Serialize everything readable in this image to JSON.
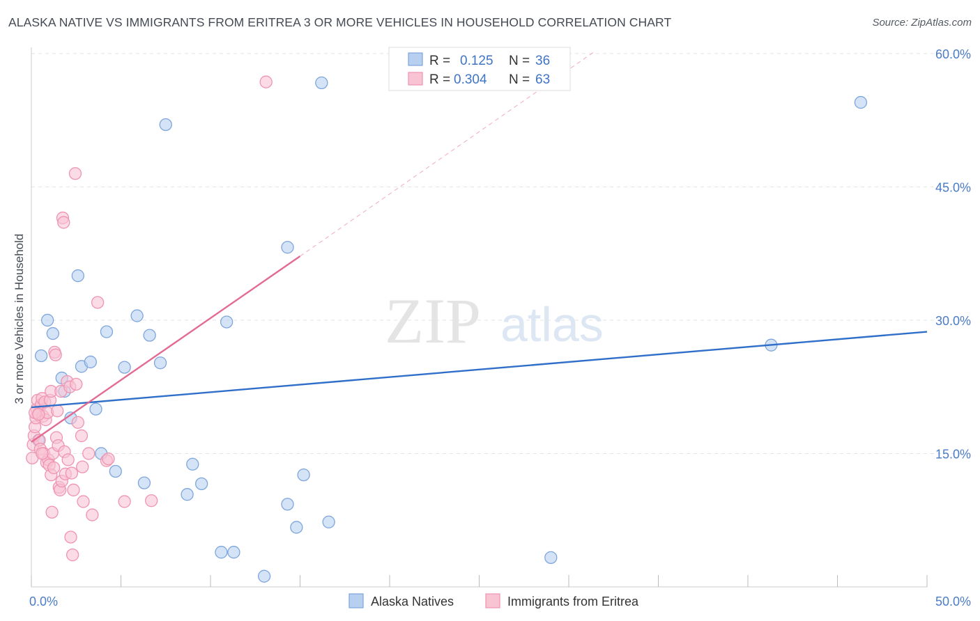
{
  "title": "ALASKA NATIVE VS IMMIGRANTS FROM ERITREA 3 OR MORE VEHICLES IN HOUSEHOLD CORRELATION CHART",
  "source": "Source: ZipAtlas.com",
  "watermark": {
    "zip": "ZIP",
    "atlas": "atlas"
  },
  "colors": {
    "blue_fill": "#b8d0f0",
    "blue_stroke": "#7ea6dc",
    "blue_line": "#2f6fc9",
    "pink_fill": "#f8c3d3",
    "pink_stroke": "#ef94b1",
    "pink_line": "#e26a93",
    "tick_text": "#4a7cc7",
    "grid": "#e3e3e3"
  },
  "legend": {
    "rows": [
      {
        "r_label": "R =",
        "r_value": "0.125",
        "n_label": "N =",
        "n_value": "36"
      },
      {
        "r_label": "R =",
        "r_value": "0.304",
        "n_label": "N =",
        "n_value": "63"
      }
    ]
  },
  "chart_data": {
    "type": "scatter",
    "title": "ALASKA NATIVE VS IMMIGRANTS FROM ERITREA 3 OR MORE VEHICLES IN HOUSEHOLD CORRELATION CHART",
    "xlabel": "",
    "ylabel": "3 or more Vehicles in Household",
    "xlim": [
      0,
      50
    ],
    "ylim": [
      0,
      60
    ],
    "x_tick_labels": [
      "0.0%",
      "50.0%"
    ],
    "y_ticks": [
      15,
      30,
      45,
      60
    ],
    "y_tick_labels": [
      "15.0%",
      "30.0%",
      "45.0%",
      "60.0%"
    ],
    "grid": true,
    "legend_position": "bottom-center",
    "series": [
      {
        "name": "Alaska Natives",
        "color": "#b8d0f0",
        "points": [
          [
            0.4,
            16.5
          ],
          [
            0.55,
            26
          ],
          [
            0.9,
            30
          ],
          [
            1.2,
            28.5
          ],
          [
            1.7,
            23.5
          ],
          [
            1.85,
            22
          ],
          [
            2.2,
            19
          ],
          [
            2.6,
            35
          ],
          [
            2.8,
            24.8
          ],
          [
            3.3,
            25.3
          ],
          [
            3.9,
            15
          ],
          [
            4.2,
            28.7
          ],
          [
            4.7,
            13
          ],
          [
            5.2,
            24.7
          ],
          [
            5.9,
            30.5
          ],
          [
            6.3,
            11.7
          ],
          [
            6.6,
            28.3
          ],
          [
            7.2,
            25.2
          ],
          [
            7.5,
            52
          ],
          [
            8.7,
            10.4
          ],
          [
            9.0,
            13.8
          ],
          [
            9.5,
            11.6
          ],
          [
            10.6,
            3.9
          ],
          [
            10.9,
            29.8
          ],
          [
            11.3,
            3.9
          ],
          [
            13.0,
            1.2
          ],
          [
            14.3,
            38.2
          ],
          [
            14.3,
            9.3
          ],
          [
            14.8,
            6.7
          ],
          [
            15.2,
            12.6
          ],
          [
            16.2,
            56.7
          ],
          [
            16.6,
            7.3
          ],
          [
            29.0,
            3.3
          ],
          [
            41.3,
            27.2
          ],
          [
            46.3,
            54.5
          ],
          [
            3.6,
            20
          ]
        ]
      },
      {
        "name": "Immigrants from Eritrea",
        "color": "#f8c3d3",
        "points": [
          [
            0.05,
            14.5
          ],
          [
            0.1,
            16
          ],
          [
            0.15,
            17
          ],
          [
            0.2,
            18
          ],
          [
            0.25,
            19
          ],
          [
            0.3,
            20
          ],
          [
            0.35,
            21
          ],
          [
            0.4,
            19.5
          ],
          [
            0.45,
            16.5
          ],
          [
            0.5,
            15.5
          ],
          [
            0.55,
            20.5
          ],
          [
            0.6,
            21.2
          ],
          [
            0.65,
            19.2
          ],
          [
            0.7,
            15
          ],
          [
            0.75,
            20.8
          ],
          [
            0.8,
            18.8
          ],
          [
            0.85,
            14
          ],
          [
            0.9,
            19.6
          ],
          [
            0.95,
            14.3
          ],
          [
            1.0,
            13.7
          ],
          [
            1.05,
            21
          ],
          [
            1.1,
            12.6
          ],
          [
            1.1,
            22
          ],
          [
            1.15,
            8.4
          ],
          [
            1.2,
            15
          ],
          [
            1.25,
            13.4
          ],
          [
            1.3,
            26.4
          ],
          [
            1.35,
            26.1
          ],
          [
            1.4,
            16.8
          ],
          [
            1.45,
            19.8
          ],
          [
            1.5,
            15.9
          ],
          [
            1.55,
            11.2
          ],
          [
            1.6,
            10.9
          ],
          [
            1.65,
            22
          ],
          [
            1.7,
            11.9
          ],
          [
            1.75,
            41.5
          ],
          [
            1.8,
            41
          ],
          [
            1.85,
            15.2
          ],
          [
            1.9,
            12.7
          ],
          [
            2.0,
            23.1
          ],
          [
            2.05,
            14.3
          ],
          [
            2.15,
            22.5
          ],
          [
            2.2,
            5.6
          ],
          [
            2.25,
            12.8
          ],
          [
            2.3,
            3.6
          ],
          [
            2.35,
            10.9
          ],
          [
            2.45,
            46.5
          ],
          [
            2.5,
            22.8
          ],
          [
            2.6,
            18.5
          ],
          [
            2.8,
            17
          ],
          [
            2.85,
            13.5
          ],
          [
            2.9,
            9.6
          ],
          [
            3.2,
            15
          ],
          [
            3.4,
            8.1
          ],
          [
            3.7,
            32
          ],
          [
            4.2,
            14.2
          ],
          [
            4.3,
            14.4
          ],
          [
            5.2,
            9.6
          ],
          [
            6.7,
            9.7
          ],
          [
            13.1,
            56.8
          ],
          [
            0.2,
            19.6
          ],
          [
            0.4,
            19.4
          ],
          [
            0.6,
            15
          ]
        ]
      }
    ],
    "trendlines": [
      {
        "series": "Alaska Natives",
        "x": [
          0,
          50
        ],
        "y": [
          20.2,
          28.7
        ],
        "style": "solid"
      },
      {
        "series": "Immigrants from Eritrea",
        "x": [
          0,
          15
        ],
        "y": [
          16.3,
          37.2
        ],
        "style": "solid"
      },
      {
        "series": "Immigrants from Eritrea",
        "x": [
          15,
          31.5
        ],
        "y": [
          37.2,
          60.3
        ],
        "style": "dashed"
      }
    ]
  }
}
